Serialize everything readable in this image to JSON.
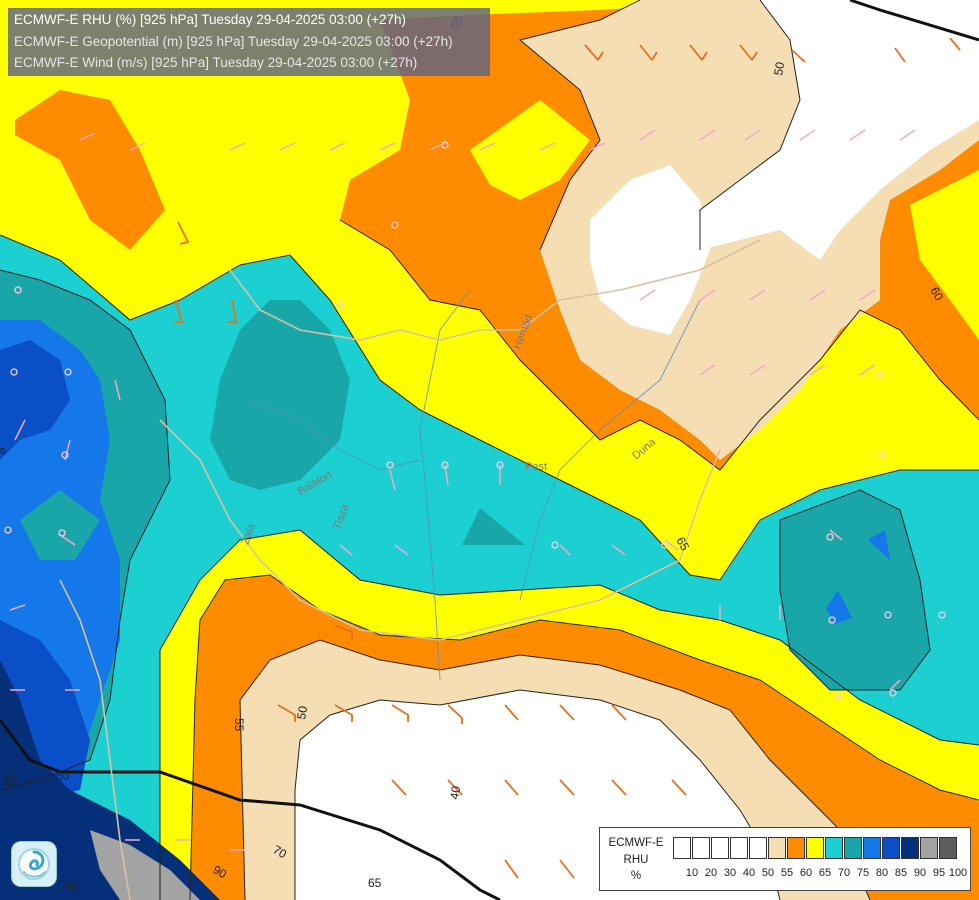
{
  "header": {
    "line1": "ECMWF-E RHU (%) [925 hPa] Tuesday 29-04-2025 03:00 (+27h)",
    "line2": "ECMWF-E Geopotential (m) [925 hPa] Tuesday 29-04-2025 03:00 (+27h)",
    "line3": "ECMWF-E Wind (m/s) [925 hPa] Tuesday 29-04-2025 03:00 (+27h)"
  },
  "legend": {
    "model": "ECMWF-E",
    "variable": "RHU",
    "unit": "%",
    "ticks": [
      "10",
      "20",
      "30",
      "40",
      "50",
      "55",
      "60",
      "65",
      "70",
      "75",
      "80",
      "85",
      "90",
      "95",
      "100"
    ],
    "colors": [
      "#ffffff",
      "#ffffff",
      "#ffffff",
      "#ffffff",
      "#ffffff",
      "#f5deb3",
      "#ff8c00",
      "#ffff00",
      "#1ccfd1",
      "#19a6a8",
      "#1478ea",
      "#0a4fc7",
      "#062f7a",
      "#a3a3a3",
      "#5e5e5e"
    ]
  },
  "contour_labels": [
    "55",
    "50",
    "60",
    "65",
    "55",
    "50",
    "40",
    "65",
    "70",
    "80",
    "90",
    "85",
    "60",
    "8"
  ],
  "place_labels": [
    "Pest",
    "Duna",
    "Tisza",
    "Zala",
    "Balaton",
    "Hernád"
  ],
  "colors": {
    "rh_50": "#ffffff",
    "rh_55": "#f5deb3",
    "rh_60": "#ff8c00",
    "rh_65": "#ffff00",
    "rh_70": "#1ccfd1",
    "rh_75": "#19a6a8",
    "rh_80": "#1478ea",
    "rh_85": "#0a4fc7",
    "rh_90": "#062f7a",
    "rh_95": "#a3a3a3"
  },
  "logo": "ecmwf-swirl-logo"
}
